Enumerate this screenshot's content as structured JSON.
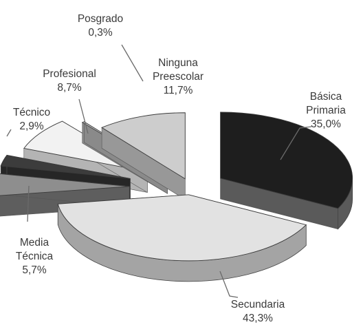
{
  "chart_data": {
    "type": "pie",
    "style": "3d-exploded",
    "title": "",
    "slices": [
      {
        "label": [
          "Básica",
          "Primaria"
        ],
        "value": 35.0,
        "value_text": "35,0%",
        "color": "#1e1e1e",
        "side": "#5a5a5a"
      },
      {
        "label": [
          "Secundaria"
        ],
        "value": 43.3,
        "value_text": "43,3%",
        "color": "#e2e2e2",
        "side": "#a4a4a4"
      },
      {
        "label": [
          "Media",
          "Técnica"
        ],
        "value": 5.7,
        "value_text": "5,7%",
        "color": "#8e8e8e",
        "side": "#5e5e5e"
      },
      {
        "label": [
          "Técnico"
        ],
        "value": 2.9,
        "value_text": "2,9%",
        "color": "#3c3c3c",
        "side": "#262626"
      },
      {
        "label": [
          "Profesional"
        ],
        "value": 8.7,
        "value_text": "8,7%",
        "color": "#f2f2f2",
        "side": "#b4b4b4"
      },
      {
        "label": [
          "Posgrado"
        ],
        "value": 0.3,
        "value_text": "0,3%",
        "color": "#bdbdbd",
        "side": "#8a8a8a"
      },
      {
        "label": [
          "Ninguna",
          "Preescolar"
        ],
        "value": 11.7,
        "value_text": "11,7%",
        "color": "#cdcdcd",
        "side": "#989898"
      }
    ]
  }
}
